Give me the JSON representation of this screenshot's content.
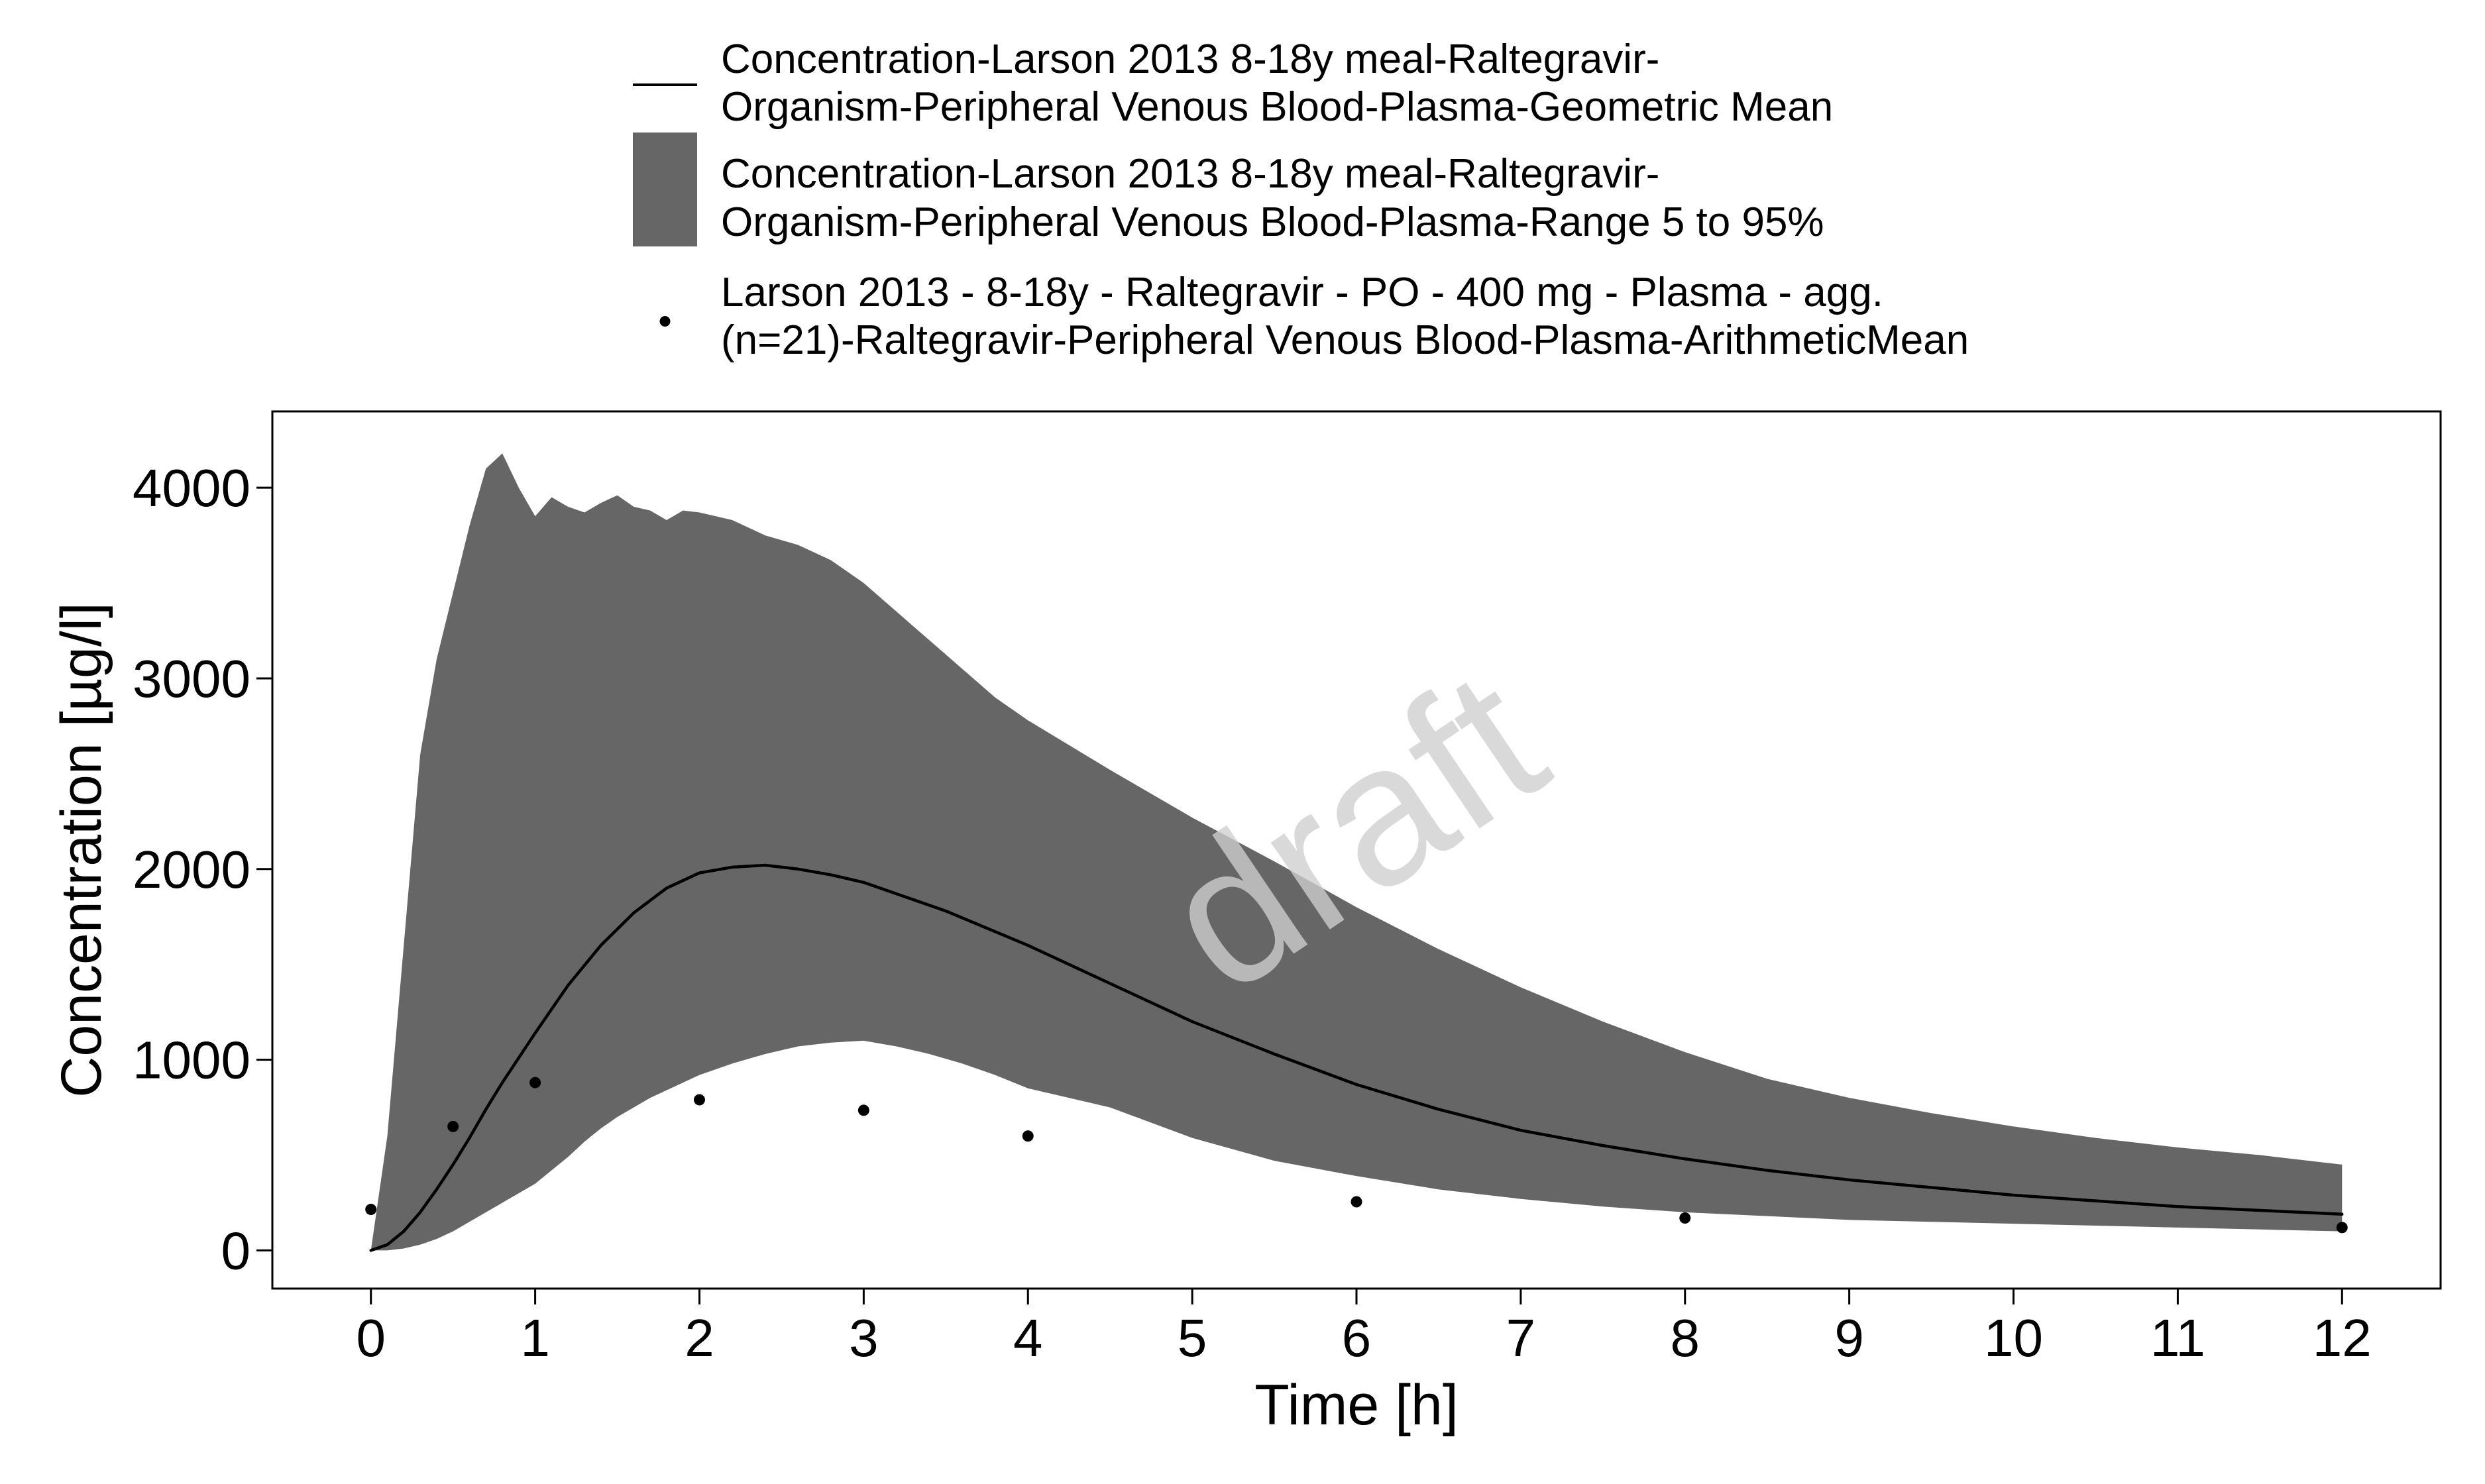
{
  "chart_data": {
    "type": "area",
    "title": "",
    "xlabel": "Time [h]",
    "ylabel": "Concentration [µg/l]",
    "xlim": [
      -0.6,
      12.6
    ],
    "ylim": [
      -200,
      4400
    ],
    "x_ticks": [
      0,
      1,
      2,
      3,
      4,
      5,
      6,
      7,
      8,
      9,
      10,
      11,
      12
    ],
    "y_ticks": [
      0,
      1000,
      2000,
      3000,
      4000
    ],
    "grid": false,
    "legend_placement": "top",
    "watermark": "draft",
    "colors": {
      "line": "#000000",
      "band": "#666666",
      "points": "#000000",
      "background": "#ffffff"
    },
    "series": [
      {
        "type": "line",
        "name_lines": [
          "Concentration-Larson 2013 8-18y meal-Raltegravir-",
          "Organism-Peripheral Venous Blood-Plasma-Geometric Mean"
        ],
        "x": [
          0,
          0.1,
          0.2,
          0.3,
          0.4,
          0.5,
          0.6,
          0.7,
          0.8,
          0.9,
          1,
          1.2,
          1.4,
          1.6,
          1.8,
          2,
          2.2,
          2.4,
          2.6,
          2.8,
          3,
          3.5,
          4,
          4.5,
          5,
          5.5,
          6,
          6.5,
          7,
          7.5,
          8,
          8.5,
          9,
          9.5,
          10,
          10.5,
          11,
          11.5,
          12
        ],
        "y": [
          0,
          30,
          100,
          200,
          320,
          450,
          590,
          740,
          880,
          1010,
          1140,
          1390,
          1600,
          1770,
          1900,
          1980,
          2010,
          2020,
          2000,
          1970,
          1930,
          1780,
          1600,
          1400,
          1200,
          1030,
          870,
          740,
          630,
          550,
          480,
          420,
          370,
          330,
          290,
          260,
          230,
          210,
          190
        ]
      },
      {
        "type": "band",
        "name_lines": [
          "Concentration-Larson 2013 8-18y meal-Raltegravir-",
          "Organism-Peripheral Venous Blood-Plasma-Range 5 to 95%"
        ],
        "x": [
          0,
          0.1,
          0.2,
          0.3,
          0.4,
          0.5,
          0.6,
          0.7,
          0.8,
          0.9,
          1,
          1.1,
          1.2,
          1.3,
          1.4,
          1.5,
          1.6,
          1.7,
          1.8,
          1.9,
          2,
          2.2,
          2.4,
          2.6,
          2.8,
          3,
          3.2,
          3.4,
          3.6,
          3.8,
          4,
          4.5,
          5,
          5.5,
          6,
          6.5,
          7,
          7.5,
          8,
          8.5,
          9,
          9.5,
          10,
          10.5,
          11,
          11.5,
          12
        ],
        "lower": [
          0,
          0,
          10,
          30,
          60,
          100,
          150,
          200,
          250,
          300,
          350,
          420,
          490,
          570,
          640,
          700,
          750,
          800,
          840,
          880,
          920,
          980,
          1030,
          1070,
          1090,
          1100,
          1070,
          1030,
          980,
          920,
          850,
          750,
          590,
          470,
          390,
          320,
          270,
          230,
          200,
          180,
          160,
          150,
          140,
          130,
          120,
          110,
          100
        ],
        "upper": [
          0,
          600,
          1600,
          2600,
          3100,
          3450,
          3800,
          4100,
          4180,
          4000,
          3850,
          3950,
          3900,
          3870,
          3920,
          3960,
          3900,
          3880,
          3830,
          3880,
          3870,
          3830,
          3750,
          3700,
          3620,
          3500,
          3350,
          3200,
          3050,
          2900,
          2780,
          2520,
          2270,
          2040,
          1800,
          1580,
          1380,
          1200,
          1040,
          900,
          800,
          720,
          650,
          590,
          540,
          500,
          450
        ]
      },
      {
        "type": "scatter",
        "name_lines": [
          "Larson 2013 - 8-18y - Raltegravir - PO - 400 mg - Plasma - agg.",
          "(n=21)-Raltegravir-Peripheral Venous Blood-Plasma-ArithmeticMean"
        ],
        "x": [
          0,
          0.5,
          1,
          2,
          3,
          4,
          6,
          8,
          12
        ],
        "y": [
          215,
          650,
          880,
          790,
          735,
          600,
          255,
          170,
          120
        ]
      }
    ]
  }
}
